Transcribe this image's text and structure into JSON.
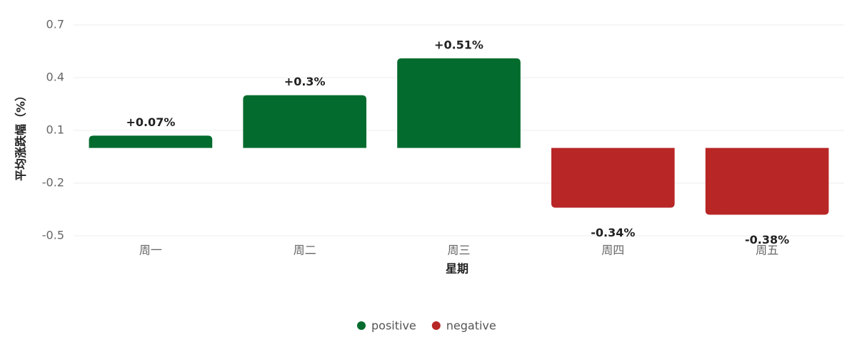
{
  "chart_data": {
    "type": "bar",
    "x_label": "星期",
    "y_label": "平均涨跌幅（%）",
    "categories": [
      "周一",
      "周二",
      "周三",
      "周四",
      "周五"
    ],
    "series": [
      {
        "name": "positive",
        "color": "#036b2d",
        "values": [
          0.07,
          0.3,
          0.51,
          null,
          null
        ],
        "value_labels": [
          "+0.07%",
          "+0.3%",
          "+0.51%",
          null,
          null
        ]
      },
      {
        "name": "negative",
        "color": "#b82626",
        "values": [
          null,
          null,
          null,
          -0.34,
          -0.38
        ],
        "value_labels": [
          null,
          null,
          null,
          "-0.34%",
          "-0.38%"
        ]
      }
    ],
    "ylim": [
      -0.5,
      0.7
    ],
    "yticks": [
      -0.5,
      -0.2,
      0.1,
      0.4,
      0.7
    ],
    "grid": true,
    "legend": "bottom"
  }
}
